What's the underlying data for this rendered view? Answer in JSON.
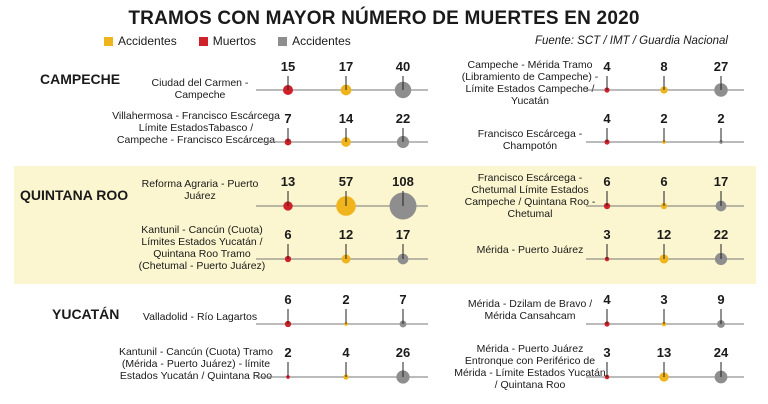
{
  "title": "TRAMOS CON MAYOR NÚMERO DE MUERTES EN 2020",
  "source": "Fuente: SCT / IMT / Guardia Nacional",
  "legend": [
    {
      "label": "Accidentes",
      "color": "#f0b41c"
    },
    {
      "label": "Muertos",
      "color": "#d0212b"
    },
    {
      "label": "Accidentes",
      "color": "#8e8e8e"
    }
  ],
  "colors": {
    "col1": "#d0212b",
    "col2": "#f0b41c",
    "col3": "#8e8e8e",
    "band": "#fbf6cf"
  },
  "states": [
    "CAMPECHE",
    "QUINTANA ROO",
    "YUCATÁN"
  ],
  "chart_data": {
    "type": "scatter",
    "title": "TRAMOS CON MAYOR NÚMERO DE MUERTES EN 2020",
    "series_names": [
      "Accidentes",
      "Muertos",
      "Accidentes"
    ],
    "rows": [
      {
        "state": "CAMPECHE",
        "name": "Ciudad del Carmen - Campeche",
        "values": [
          15,
          17,
          40
        ]
      },
      {
        "state": "CAMPECHE",
        "name": "Campeche - Mérida Tramo (Libramiento de Campeche) - Límite Estados Campeche / Yucatán",
        "values": [
          4,
          8,
          27
        ]
      },
      {
        "state": "CAMPECHE",
        "name": "Villahermosa - Francisco Escárcega Límite EstadosTabasco / Campeche - Francisco Escárcega",
        "values": [
          7,
          14,
          22
        ]
      },
      {
        "state": "CAMPECHE",
        "name": "Francisco Escárcega - Champotón",
        "values": [
          4,
          2,
          2
        ]
      },
      {
        "state": "QUINTANA ROO",
        "name": "Reforma Agraria - Puerto Juárez",
        "values": [
          13,
          57,
          108
        ]
      },
      {
        "state": "QUINTANA ROO",
        "name": "Francisco Escárcega - Chetumal Límite Estados Campeche / Quintana Roo - Chetumal",
        "values": [
          6,
          6,
          17
        ]
      },
      {
        "state": "QUINTANA ROO",
        "name": "Kantunil - Cancún (Cuota) Límites Estados Yucatán / Quintana Roo Tramo (Chetumal - Puerto Juárez)",
        "values": [
          6,
          12,
          17
        ]
      },
      {
        "state": "QUINTANA ROO",
        "name": "Mérida - Puerto Juárez",
        "values": [
          3,
          12,
          22
        ]
      },
      {
        "state": "YUCATÁN",
        "name": "Valladolid - Río Lagartos",
        "values": [
          6,
          2,
          7
        ]
      },
      {
        "state": "YUCATÁN",
        "name": "Mérida - Dzilam de Bravo / Mérida Cansahcam",
        "values": [
          4,
          3,
          9
        ]
      },
      {
        "state": "YUCATÁN",
        "name": "Kantunil - Cancún (Cuota) Tramo (Mérida - Puerto Juárez) - límite Estados Yucatán / Quintana  Roo",
        "values": [
          2,
          4,
          26
        ]
      },
      {
        "state": "YUCATÁN",
        "name": "Mérida - Puerto Juárez Entronque con Periférico de Mérida - Límite Estados Yucatán / Quintana Roo",
        "values": [
          3,
          13,
          24
        ]
      }
    ]
  }
}
